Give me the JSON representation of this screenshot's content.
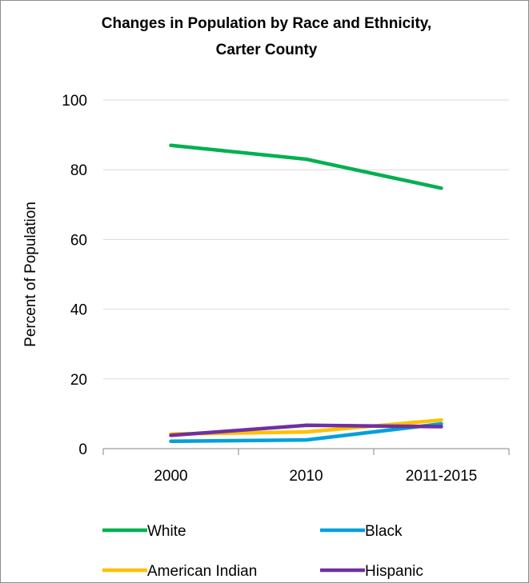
{
  "chart_data": {
    "type": "line",
    "title_line1": "Changes in Population by Race and Ethnicity,",
    "title_line2": "Carter County",
    "xlabel": "",
    "ylabel": "Percent of Population",
    "categories": [
      "2000",
      "2010",
      "2011-2015"
    ],
    "ylim": [
      0,
      100
    ],
    "yticks": [
      "0",
      "20",
      "40",
      "60",
      "80",
      "100"
    ],
    "grid": true,
    "legend_position": "bottom",
    "series": [
      {
        "name": "White",
        "color": "#00b050",
        "values": [
          87.0,
          83.0,
          74.7
        ]
      },
      {
        "name": "Black",
        "color": "#00a0dc",
        "values": [
          2.1,
          2.5,
          7.1
        ]
      },
      {
        "name": "American Indian",
        "color": "#ffc000",
        "values": [
          4.2,
          4.8,
          8.2
        ]
      },
      {
        "name": "Hispanic",
        "color": "#7030a0",
        "values": [
          3.8,
          6.7,
          6.3
        ]
      }
    ]
  }
}
